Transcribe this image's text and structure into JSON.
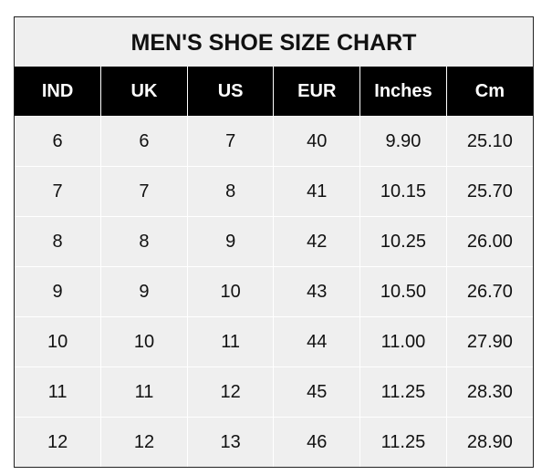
{
  "chart_data": {
    "type": "table",
    "title": "MEN'S SHOE SIZE CHART",
    "columns": [
      "IND",
      "UK",
      "US",
      "EUR",
      "Inches",
      "Cm"
    ],
    "rows": [
      [
        "6",
        "6",
        "7",
        "40",
        "9.90",
        "25.10"
      ],
      [
        "7",
        "7",
        "8",
        "41",
        "10.15",
        "25.70"
      ],
      [
        "8",
        "8",
        "9",
        "42",
        "10.25",
        "26.00"
      ],
      [
        "9",
        "9",
        "10",
        "43",
        "10.50",
        "26.70"
      ],
      [
        "10",
        "10",
        "11",
        "44",
        "11.00",
        "27.90"
      ],
      [
        "11",
        "11",
        "12",
        "45",
        "11.25",
        "28.30"
      ],
      [
        "12",
        "12",
        "13",
        "46",
        "11.25",
        "28.90"
      ]
    ]
  },
  "colors": {
    "header_bg": "#000000",
    "header_text": "#ffffff",
    "cell_bg": "#efefef",
    "grid": "#ffffff"
  }
}
